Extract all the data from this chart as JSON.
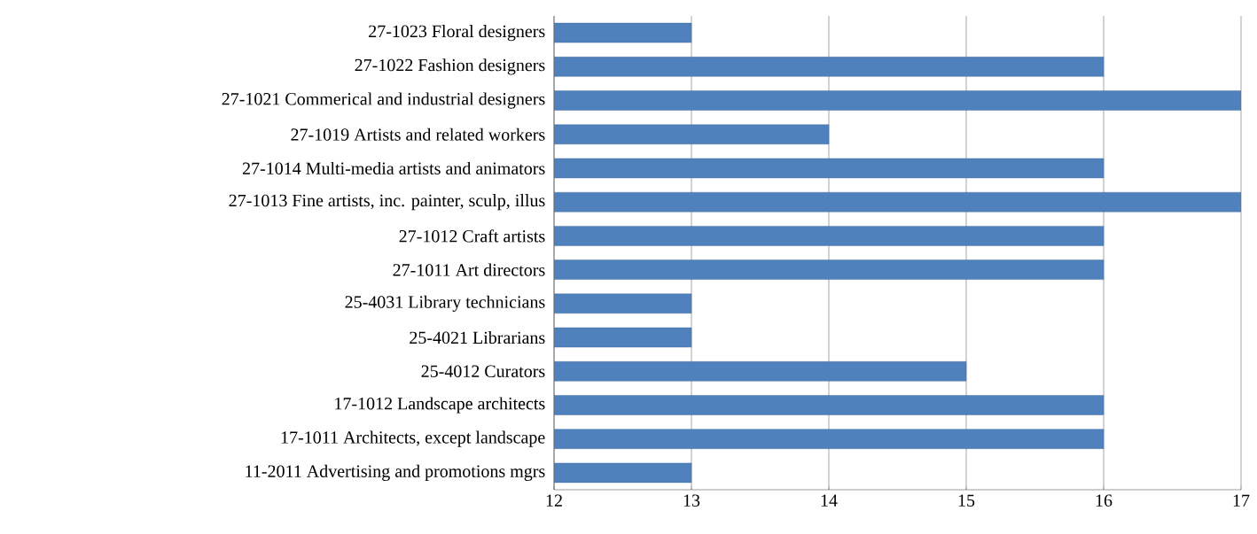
{
  "chart_data": {
    "type": "bar",
    "orientation": "horizontal",
    "categories": [
      "27-1023 Floral designers",
      "27-1022 Fashion designers",
      "27-1021 Commerical and industrial designers",
      "27-1019 Artists and related workers",
      "27-1014 Multi-media artists and animators",
      "27-1013 Fine artists, inc. painter, sculp, illus",
      "27-1012 Craft artists",
      "27-1011 Art directors",
      "25-4031 Library technicians",
      "25-4021 Librarians",
      "25-4012 Curators",
      "17-1012 Landscape architects",
      "17-1011 Architects, except landscape",
      "11-2011 Advertising and promotions mgrs"
    ],
    "values": [
      13,
      16,
      17,
      14,
      16,
      17,
      16,
      16,
      13,
      13,
      15,
      16,
      16,
      13
    ],
    "color": "#4f81bd",
    "xlim": [
      12,
      17
    ],
    "xticks": [
      12,
      13,
      14,
      15,
      16,
      17
    ],
    "grid": "x"
  }
}
